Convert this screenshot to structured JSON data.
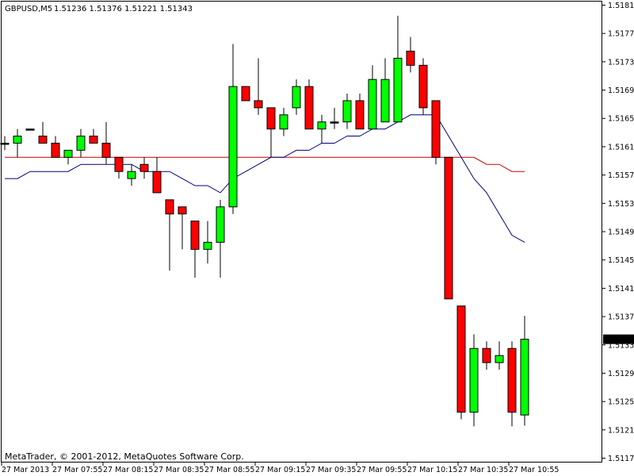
{
  "header": {
    "symbol": "GBPUSD,M5",
    "ohlc": "1.51236 1.51376 1.51221 1.51343"
  },
  "footer": {
    "copyright": "MetaTrader, © 2001-2012, MetaQuotes Software Corp."
  },
  "colors": {
    "bull": "#00ff00",
    "bear": "#ff0000",
    "wick": "#000000",
    "ma_fast": "#000080",
    "ma_slow": "#cc0000",
    "price_tag_bg": "#000000",
    "price_tag_text": "#ffffff"
  },
  "chart_data": {
    "type": "candlestick",
    "ylim": [
      1.5117,
      1.5182
    ],
    "y_ticks": [
      "1.51815",
      "1.51775",
      "1.51735",
      "1.51695",
      "1.51655",
      "1.51615",
      "1.51575",
      "1.51535",
      "1.51495",
      "1.51455",
      "1.51415",
      "1.51375",
      "1.51335",
      "1.51295",
      "1.51255",
      "1.51215",
      "1.51175"
    ],
    "x_ticks": [
      "27 Mar 2013",
      "27 Mar 07:55",
      "27 Mar 08:15",
      "27 Mar 08:35",
      "27 Mar 08:55",
      "27 Mar 09:15",
      "27 Mar 09:35",
      "27 Mar 09:55",
      "27 Mar 10:15",
      "27 Mar 10:35",
      "27 Mar 10:55"
    ],
    "current_price_label": "1.51343",
    "current_price": 1.51343,
    "candles": [
      {
        "o": 1.5162,
        "h": 1.5163,
        "l": 1.5161,
        "c": 1.5162
      },
      {
        "o": 1.5162,
        "h": 1.5164,
        "l": 1.516,
        "c": 1.5163
      },
      {
        "o": 1.5164,
        "h": 1.5164,
        "l": 1.5164,
        "c": 1.5164
      },
      {
        "o": 1.5163,
        "h": 1.5165,
        "l": 1.5162,
        "c": 1.5162
      },
      {
        "o": 1.5162,
        "h": 1.5163,
        "l": 1.516,
        "c": 1.516
      },
      {
        "o": 1.516,
        "h": 1.5161,
        "l": 1.5159,
        "c": 1.5161
      },
      {
        "o": 1.5161,
        "h": 1.5164,
        "l": 1.516,
        "c": 1.5163
      },
      {
        "o": 1.5163,
        "h": 1.5164,
        "l": 1.5162,
        "c": 1.5162
      },
      {
        "o": 1.5162,
        "h": 1.5165,
        "l": 1.5159,
        "c": 1.516
      },
      {
        "o": 1.516,
        "h": 1.516,
        "l": 1.5157,
        "c": 1.5158
      },
      {
        "o": 1.5157,
        "h": 1.5159,
        "l": 1.5156,
        "c": 1.5158
      },
      {
        "o": 1.5159,
        "h": 1.516,
        "l": 1.5157,
        "c": 1.5158
      },
      {
        "o": 1.5158,
        "h": 1.516,
        "l": 1.5155,
        "c": 1.5155
      },
      {
        "o": 1.5154,
        "h": 1.5154,
        "l": 1.5144,
        "c": 1.5152
      },
      {
        "o": 1.5153,
        "h": 1.5153,
        "l": 1.5147,
        "c": 1.5152
      },
      {
        "o": 1.5151,
        "h": 1.5151,
        "l": 1.5143,
        "c": 1.5147
      },
      {
        "o": 1.5147,
        "h": 1.5151,
        "l": 1.5145,
        "c": 1.5148
      },
      {
        "o": 1.5148,
        "h": 1.5154,
        "l": 1.5143,
        "c": 1.5153
      },
      {
        "o": 1.5153,
        "h": 1.5176,
        "l": 1.5152,
        "c": 1.517
      },
      {
        "o": 1.517,
        "h": 1.517,
        "l": 1.5168,
        "c": 1.5168
      },
      {
        "o": 1.5168,
        "h": 1.5174,
        "l": 1.5166,
        "c": 1.5167
      },
      {
        "o": 1.5167,
        "h": 1.5167,
        "l": 1.516,
        "c": 1.5164
      },
      {
        "o": 1.5164,
        "h": 1.5167,
        "l": 1.5163,
        "c": 1.5166
      },
      {
        "o": 1.5167,
        "h": 1.5171,
        "l": 1.5166,
        "c": 1.517
      },
      {
        "o": 1.517,
        "h": 1.5171,
        "l": 1.5164,
        "c": 1.5164
      },
      {
        "o": 1.5164,
        "h": 1.5166,
        "l": 1.5162,
        "c": 1.5165
      },
      {
        "o": 1.5165,
        "h": 1.5167,
        "l": 1.5164,
        "c": 1.5165
      },
      {
        "o": 1.5165,
        "h": 1.5169,
        "l": 1.5164,
        "c": 1.5168
      },
      {
        "o": 1.5168,
        "h": 1.5169,
        "l": 1.5164,
        "c": 1.5164
      },
      {
        "o": 1.5164,
        "h": 1.5173,
        "l": 1.5164,
        "c": 1.5171
      },
      {
        "o": 1.5165,
        "h": 1.5174,
        "l": 1.5165,
        "c": 1.5171
      },
      {
        "o": 1.5165,
        "h": 1.518,
        "l": 1.5165,
        "c": 1.5174
      },
      {
        "o": 1.5175,
        "h": 1.5177,
        "l": 1.5172,
        "c": 1.5173
      },
      {
        "o": 1.5173,
        "h": 1.5174,
        "l": 1.5166,
        "c": 1.5167
      },
      {
        "o": 1.5168,
        "h": 1.5168,
        "l": 1.5159,
        "c": 1.516
      },
      {
        "o": 1.516,
        "h": 1.516,
        "l": 1.514,
        "c": 1.514
      },
      {
        "o": 1.5139,
        "h": 1.5139,
        "l": 1.5123,
        "c": 1.5124
      },
      {
        "o": 1.5124,
        "h": 1.5135,
        "l": 1.5122,
        "c": 1.5133
      },
      {
        "o": 1.5133,
        "h": 1.5134,
        "l": 1.513,
        "c": 1.5131
      },
      {
        "o": 1.5131,
        "h": 1.5134,
        "l": 1.513,
        "c": 1.5132
      },
      {
        "o": 1.5133,
        "h": 1.5134,
        "l": 1.5122,
        "c": 1.5124
      },
      {
        "o": 1.51236,
        "h": 1.51376,
        "l": 1.51221,
        "c": 1.51343
      }
    ],
    "ma_fast": [
      1.5157,
      1.5157,
      1.5158,
      1.5158,
      1.5158,
      1.5158,
      1.5159,
      1.5159,
      1.5159,
      1.5159,
      1.5159,
      1.5158,
      1.5158,
      1.5158,
      1.5157,
      1.5156,
      1.5156,
      1.5155,
      1.5157,
      1.5158,
      1.5159,
      1.516,
      1.516,
      1.5161,
      1.5161,
      1.5162,
      1.5162,
      1.5163,
      1.5163,
      1.5164,
      1.5164,
      1.5165,
      1.5166,
      1.5166,
      1.5166,
      1.5163,
      1.516,
      1.5157,
      1.5155,
      1.5152,
      1.5149,
      1.5148
    ],
    "ma_slow": [
      1.516,
      1.516,
      1.516,
      1.516,
      1.516,
      1.516,
      1.516,
      1.516,
      1.516,
      1.516,
      1.516,
      1.516,
      1.516,
      1.516,
      1.516,
      1.516,
      1.516,
      1.516,
      1.516,
      1.516,
      1.516,
      1.516,
      1.516,
      1.516,
      1.516,
      1.516,
      1.516,
      1.516,
      1.516,
      1.516,
      1.516,
      1.516,
      1.516,
      1.516,
      1.516,
      1.516,
      1.516,
      1.516,
      1.5159,
      1.5159,
      1.5158,
      1.5158
    ]
  }
}
